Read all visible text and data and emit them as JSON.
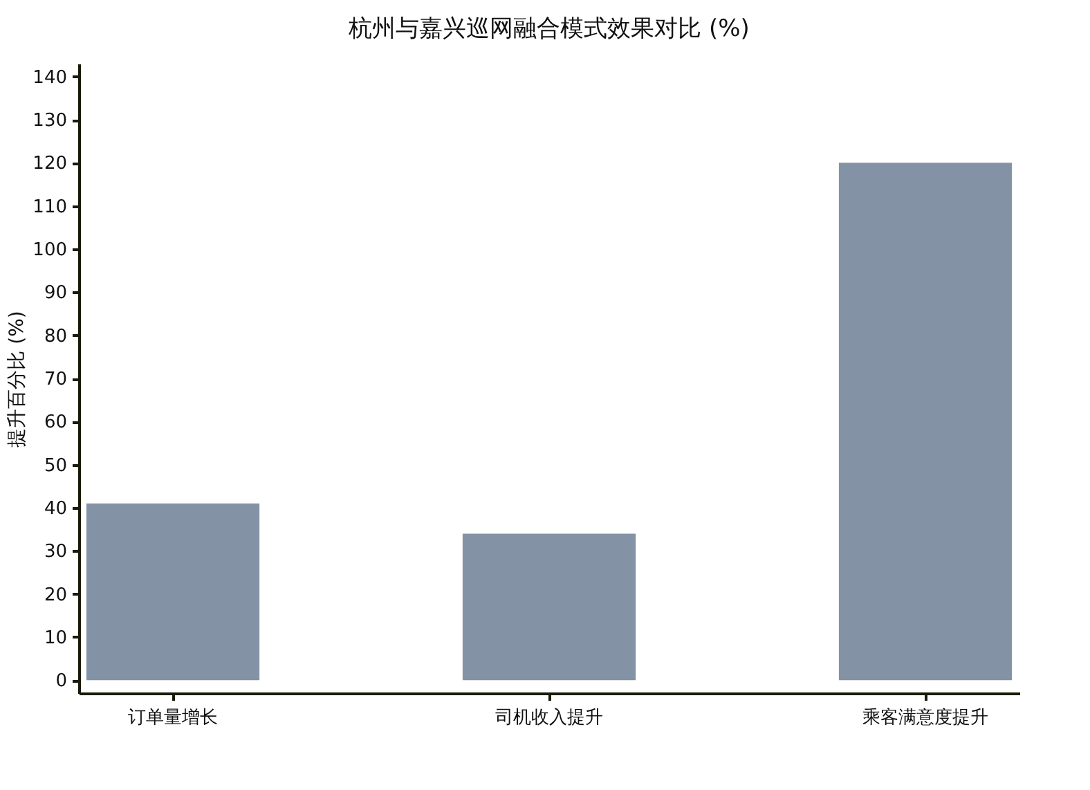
{
  "chart_data": {
    "type": "bar",
    "title": "杭州与嘉兴巡网融合模式效果对比 (%)",
    "ylabel": "提升百分比 (%)",
    "categories": [
      "订单量增长",
      "司机收入提升",
      "乘客满意度提升"
    ],
    "values": [
      41,
      34,
      120
    ],
    "color": "#8492a6",
    "ylim": [
      -3,
      143
    ],
    "yticks": [
      0,
      10,
      20,
      30,
      40,
      50,
      60,
      70,
      80,
      90,
      100,
      110,
      120,
      130,
      140
    ],
    "grid": false
  }
}
